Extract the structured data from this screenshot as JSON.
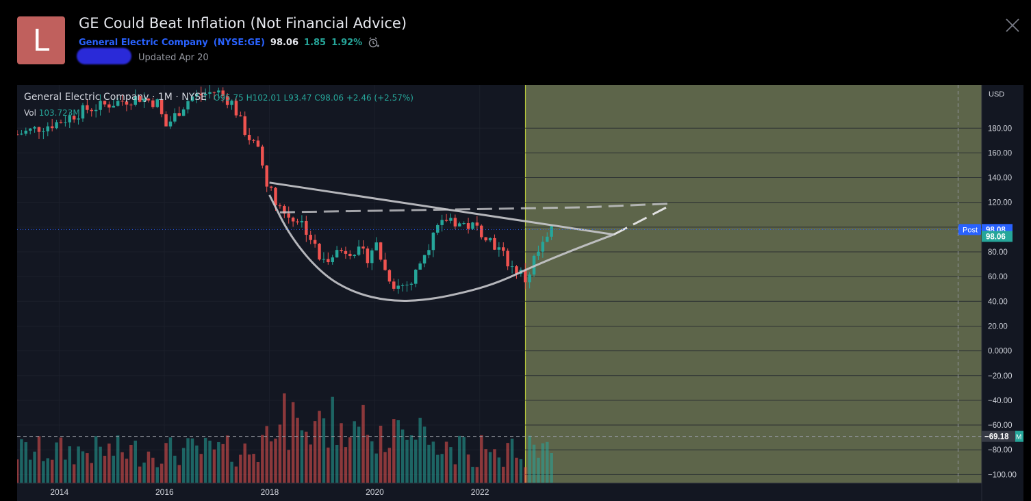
{
  "header": {
    "avatar_letter": "L",
    "title": "GE Could Beat Inflation (Not Financial Advice)",
    "company": "General Electric Company",
    "ticker": "(NYSE:GE)",
    "price": "98.06",
    "change": "1.85",
    "change_pct": "1.92%",
    "updated": "Updated Apr 20"
  },
  "legend": {
    "symbol": "General Electric Company · 1M · NYSE",
    "ohlc": "O95.75 H102.01 L93.47 C98.06 +2.46 (+2.57%)",
    "vol_label": "Vol",
    "vol_value": "103.723M"
  },
  "chart_data": {
    "type": "candlestick",
    "currency_label": "USD",
    "yticks": [
      180,
      160,
      140,
      120,
      100,
      80,
      60,
      40,
      20,
      0,
      -20,
      -40,
      -60,
      -80,
      -100
    ],
    "ytick_labels": [
      "180.00",
      "160.00",
      "140.00",
      "120.00",
      "",
      "80.00",
      "60.00",
      "40.00",
      "20.00",
      "0.0000",
      "−20.00",
      "−40.00",
      "−60.00",
      "−80.00",
      "−100.00"
    ],
    "ylim": [
      -107,
      215
    ],
    "xticks": [
      {
        "year": 2014,
        "label": "2014"
      },
      {
        "year": 2016,
        "label": "2016"
      },
      {
        "year": 2018,
        "label": "2018"
      },
      {
        "year": 2020,
        "label": "2020"
      },
      {
        "year": 2022,
        "label": "2022"
      }
    ],
    "xlim": [
      2013.2,
      2031.55
    ],
    "current_price": {
      "label": "98.06",
      "value": 98.06
    },
    "post_price": {
      "tag": "Post",
      "label": "98.08",
      "value": 98.08
    },
    "crosshair": {
      "label": "−69.18",
      "value": -69.18,
      "year": 2031.1
    },
    "volume_scale_tag": "M",
    "forecast_start": 2022.87,
    "colors": {
      "up": "#26a69a",
      "down": "#ef5350",
      "forecast_bg": "#5d654a",
      "grid": "#1e222d",
      "pattern": "#c8c8cc",
      "bg": "#131722"
    },
    "pattern": {
      "cup": [
        [
          2018.0,
          126
        ],
        [
          2018.4,
          92
        ],
        [
          2019.0,
          62
        ],
        [
          2019.6,
          47
        ],
        [
          2020.3,
          40
        ],
        [
          2021.0,
          41
        ],
        [
          2021.8,
          48
        ],
        [
          2022.4,
          56
        ],
        [
          2023.0,
          68
        ],
        [
          2023.8,
          82
        ],
        [
          2024.55,
          94
        ]
      ],
      "upper_line": [
        [
          2018.0,
          136
        ],
        [
          2024.55,
          94
        ]
      ],
      "dashed_top": [
        [
          2018.2,
          112
        ],
        [
          2024.0,
          116
        ],
        [
          2025.6,
          119
        ]
      ],
      "dashed_arrow": [
        [
          2024.55,
          94
        ],
        [
          2025.6,
          117
        ]
      ]
    },
    "candles": []
  }
}
